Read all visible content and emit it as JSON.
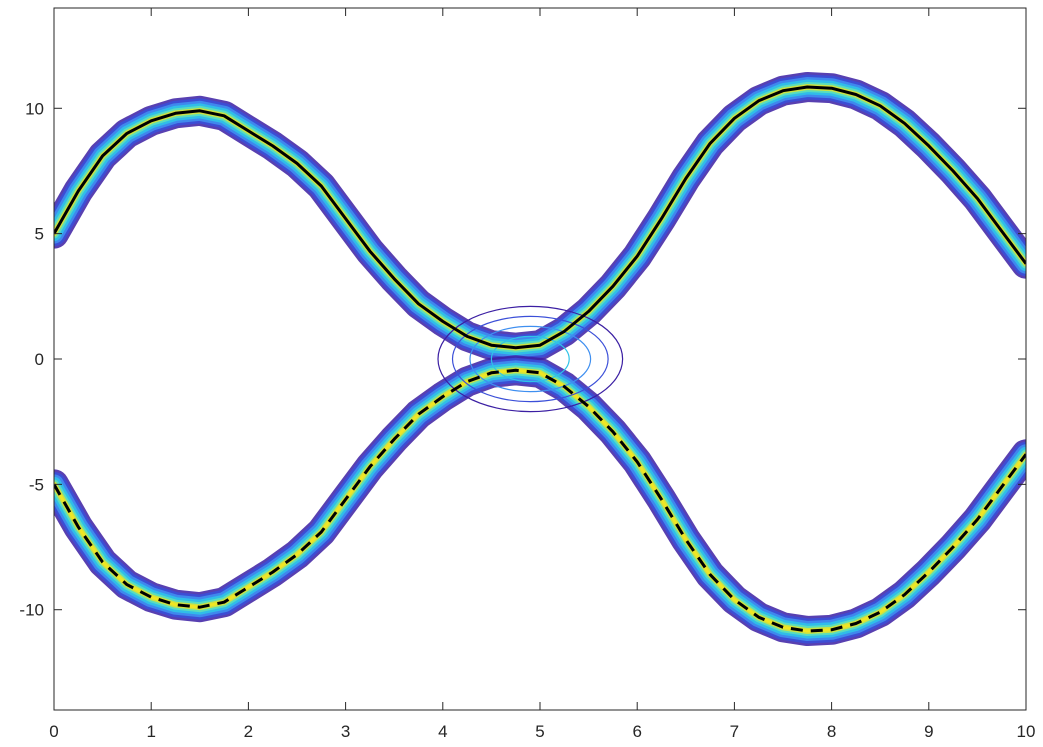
{
  "chart_data": {
    "type": "line",
    "title": "",
    "xlabel": "",
    "ylabel": "",
    "xlim": [
      0,
      10
    ],
    "ylim": [
      -14,
      14
    ],
    "xticks": [
      0,
      1,
      2,
      3,
      4,
      5,
      6,
      7,
      8,
      9,
      10
    ],
    "yticks": [
      -10,
      -5,
      0,
      5,
      10
    ],
    "xtick_labels": [
      "0",
      "1",
      "2",
      "3",
      "4",
      "5",
      "6",
      "7",
      "8",
      "9",
      "10"
    ],
    "ytick_labels": [
      "-10",
      "-5",
      "0",
      "5",
      "10"
    ],
    "grid": false,
    "series": [
      {
        "style": "solid",
        "color": "#000000",
        "x": [
          0,
          0.25,
          0.5,
          0.75,
          1,
          1.25,
          1.5,
          1.75,
          2,
          2.25,
          2.5,
          2.75,
          3,
          3.25,
          3.5,
          3.75,
          4,
          4.25,
          4.5,
          4.75,
          5,
          5.25,
          5.5,
          5.75,
          6,
          6.25,
          6.5,
          6.75,
          7,
          7.25,
          7.5,
          7.75,
          8,
          8.25,
          8.5,
          8.75,
          9,
          9.25,
          9.5,
          9.75,
          10
        ],
        "y": [
          5.0,
          6.7,
          8.1,
          9.0,
          9.5,
          9.8,
          9.9,
          9.7,
          9.1,
          8.5,
          7.8,
          6.9,
          5.6,
          4.3,
          3.2,
          2.2,
          1.5,
          0.9,
          0.55,
          0.45,
          0.55,
          1.1,
          1.9,
          2.9,
          4.1,
          5.6,
          7.2,
          8.6,
          9.6,
          10.3,
          10.7,
          10.85,
          10.8,
          10.55,
          10.1,
          9.4,
          8.5,
          7.5,
          6.4,
          5.1,
          3.8
        ]
      },
      {
        "style": "dashed",
        "color": "#000000",
        "x": [
          0,
          0.25,
          0.5,
          0.75,
          1,
          1.25,
          1.5,
          1.75,
          2,
          2.25,
          2.5,
          2.75,
          3,
          3.25,
          3.5,
          3.75,
          4,
          4.25,
          4.5,
          4.75,
          5,
          5.25,
          5.5,
          5.75,
          6,
          6.25,
          6.5,
          6.75,
          7,
          7.25,
          7.5,
          7.75,
          8,
          8.25,
          8.5,
          8.75,
          9,
          9.25,
          9.5,
          9.75,
          10
        ],
        "y": [
          -5.0,
          -6.7,
          -8.1,
          -9.0,
          -9.5,
          -9.8,
          -9.9,
          -9.7,
          -9.1,
          -8.5,
          -7.8,
          -6.9,
          -5.6,
          -4.3,
          -3.2,
          -2.2,
          -1.5,
          -0.9,
          -0.55,
          -0.45,
          -0.55,
          -1.1,
          -1.9,
          -2.9,
          -4.1,
          -5.6,
          -7.2,
          -8.6,
          -9.6,
          -10.3,
          -10.7,
          -10.85,
          -10.8,
          -10.55,
          -10.1,
          -9.4,
          -8.5,
          -7.5,
          -6.4,
          -5.1,
          -3.8
        ]
      }
    ],
    "density_contours": {
      "colormap": [
        "#3b1fa3",
        "#3b4fd8",
        "#3f8ff0",
        "#2fc3e8",
        "#5fe0b8",
        "#d6e238",
        "#f5e61e"
      ],
      "description_levels": 7
    }
  }
}
